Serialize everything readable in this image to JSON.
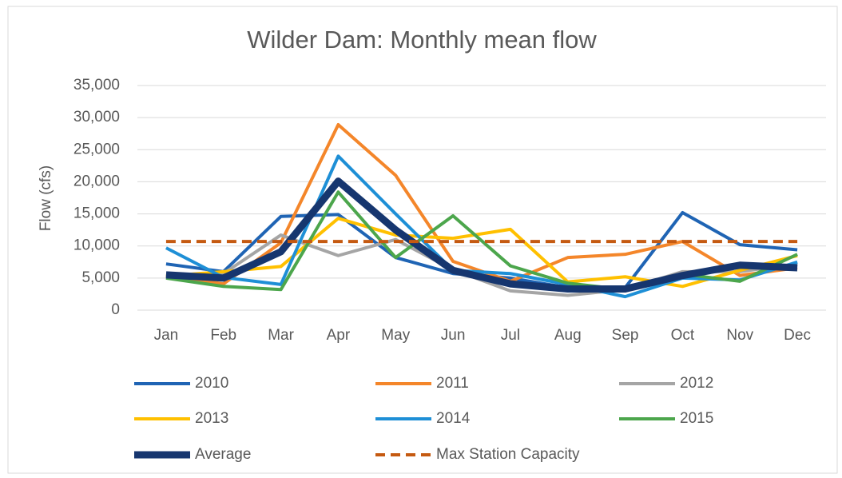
{
  "chart_data": {
    "type": "line",
    "title": "Wilder Dam:  Monthly mean flow",
    "y_label": "Flow (cfs)",
    "categories": [
      "Jan",
      "Feb",
      "Mar",
      "Apr",
      "May",
      "Jun",
      "Jul",
      "Aug",
      "Sep",
      "Oct",
      "Nov",
      "Dec"
    ],
    "ylim": [
      0,
      35000
    ],
    "yticks": [
      0,
      {
        "value": 5000,
        "label": "5,000"
      },
      {
        "value": 10000,
        "label": "10,000"
      },
      {
        "value": 15000,
        "label": "15,000"
      },
      {
        "value": 20000,
        "label": "20,000"
      },
      {
        "value": 25000,
        "label": "25,000"
      },
      {
        "value": 30000,
        "label": "30,000"
      },
      {
        "value": 35000,
        "label": "35,000"
      }
    ],
    "grid": true,
    "series": [
      {
        "name": "2010",
        "color": "#1f64b4",
        "style": "solid",
        "values": [
          7200,
          6000,
          14600,
          14900,
          8200,
          5700,
          5000,
          3500,
          3500,
          15200,
          10200,
          9400
        ]
      },
      {
        "name": "2011",
        "color": "#f4862a",
        "style": "solid",
        "values": [
          5400,
          4100,
          10500,
          28900,
          21000,
          7600,
          4500,
          8200,
          8700,
          10700,
          5400,
          6600
        ]
      },
      {
        "name": "2012",
        "color": "#a5a5a5",
        "style": "solid",
        "values": [
          5300,
          5700,
          11700,
          8500,
          11000,
          6300,
          3000,
          2300,
          3200,
          6000,
          6000,
          7200
        ]
      },
      {
        "name": "2013",
        "color": "#ffc000",
        "style": "solid",
        "values": [
          5300,
          6000,
          6800,
          14300,
          11700,
          11200,
          12600,
          4400,
          5200,
          3700,
          6200,
          8500
        ]
      },
      {
        "name": "2014",
        "color": "#1e8fd6",
        "style": "solid",
        "values": [
          9700,
          5100,
          4000,
          24000,
          15000,
          6200,
          5700,
          4000,
          2100,
          5000,
          4700,
          7500
        ]
      },
      {
        "name": "2015",
        "color": "#4ca64c",
        "style": "solid",
        "values": [
          5000,
          3700,
          3200,
          18400,
          8200,
          14700,
          6900,
          4200,
          3200,
          5600,
          4500,
          8700
        ]
      },
      {
        "name": "Average",
        "color": "#16366f",
        "style": "bold",
        "values": [
          5500,
          5000,
          9100,
          20100,
          12500,
          6200,
          4100,
          3300,
          3300,
          5400,
          7000,
          6600
        ]
      },
      {
        "name": "Max Station Capacity",
        "color": "#c55a11",
        "style": "dashed",
        "values": [
          10700,
          10700,
          10700,
          10700,
          10700,
          10700,
          10700,
          10700,
          10700,
          10700,
          10700,
          10700
        ]
      }
    ]
  }
}
